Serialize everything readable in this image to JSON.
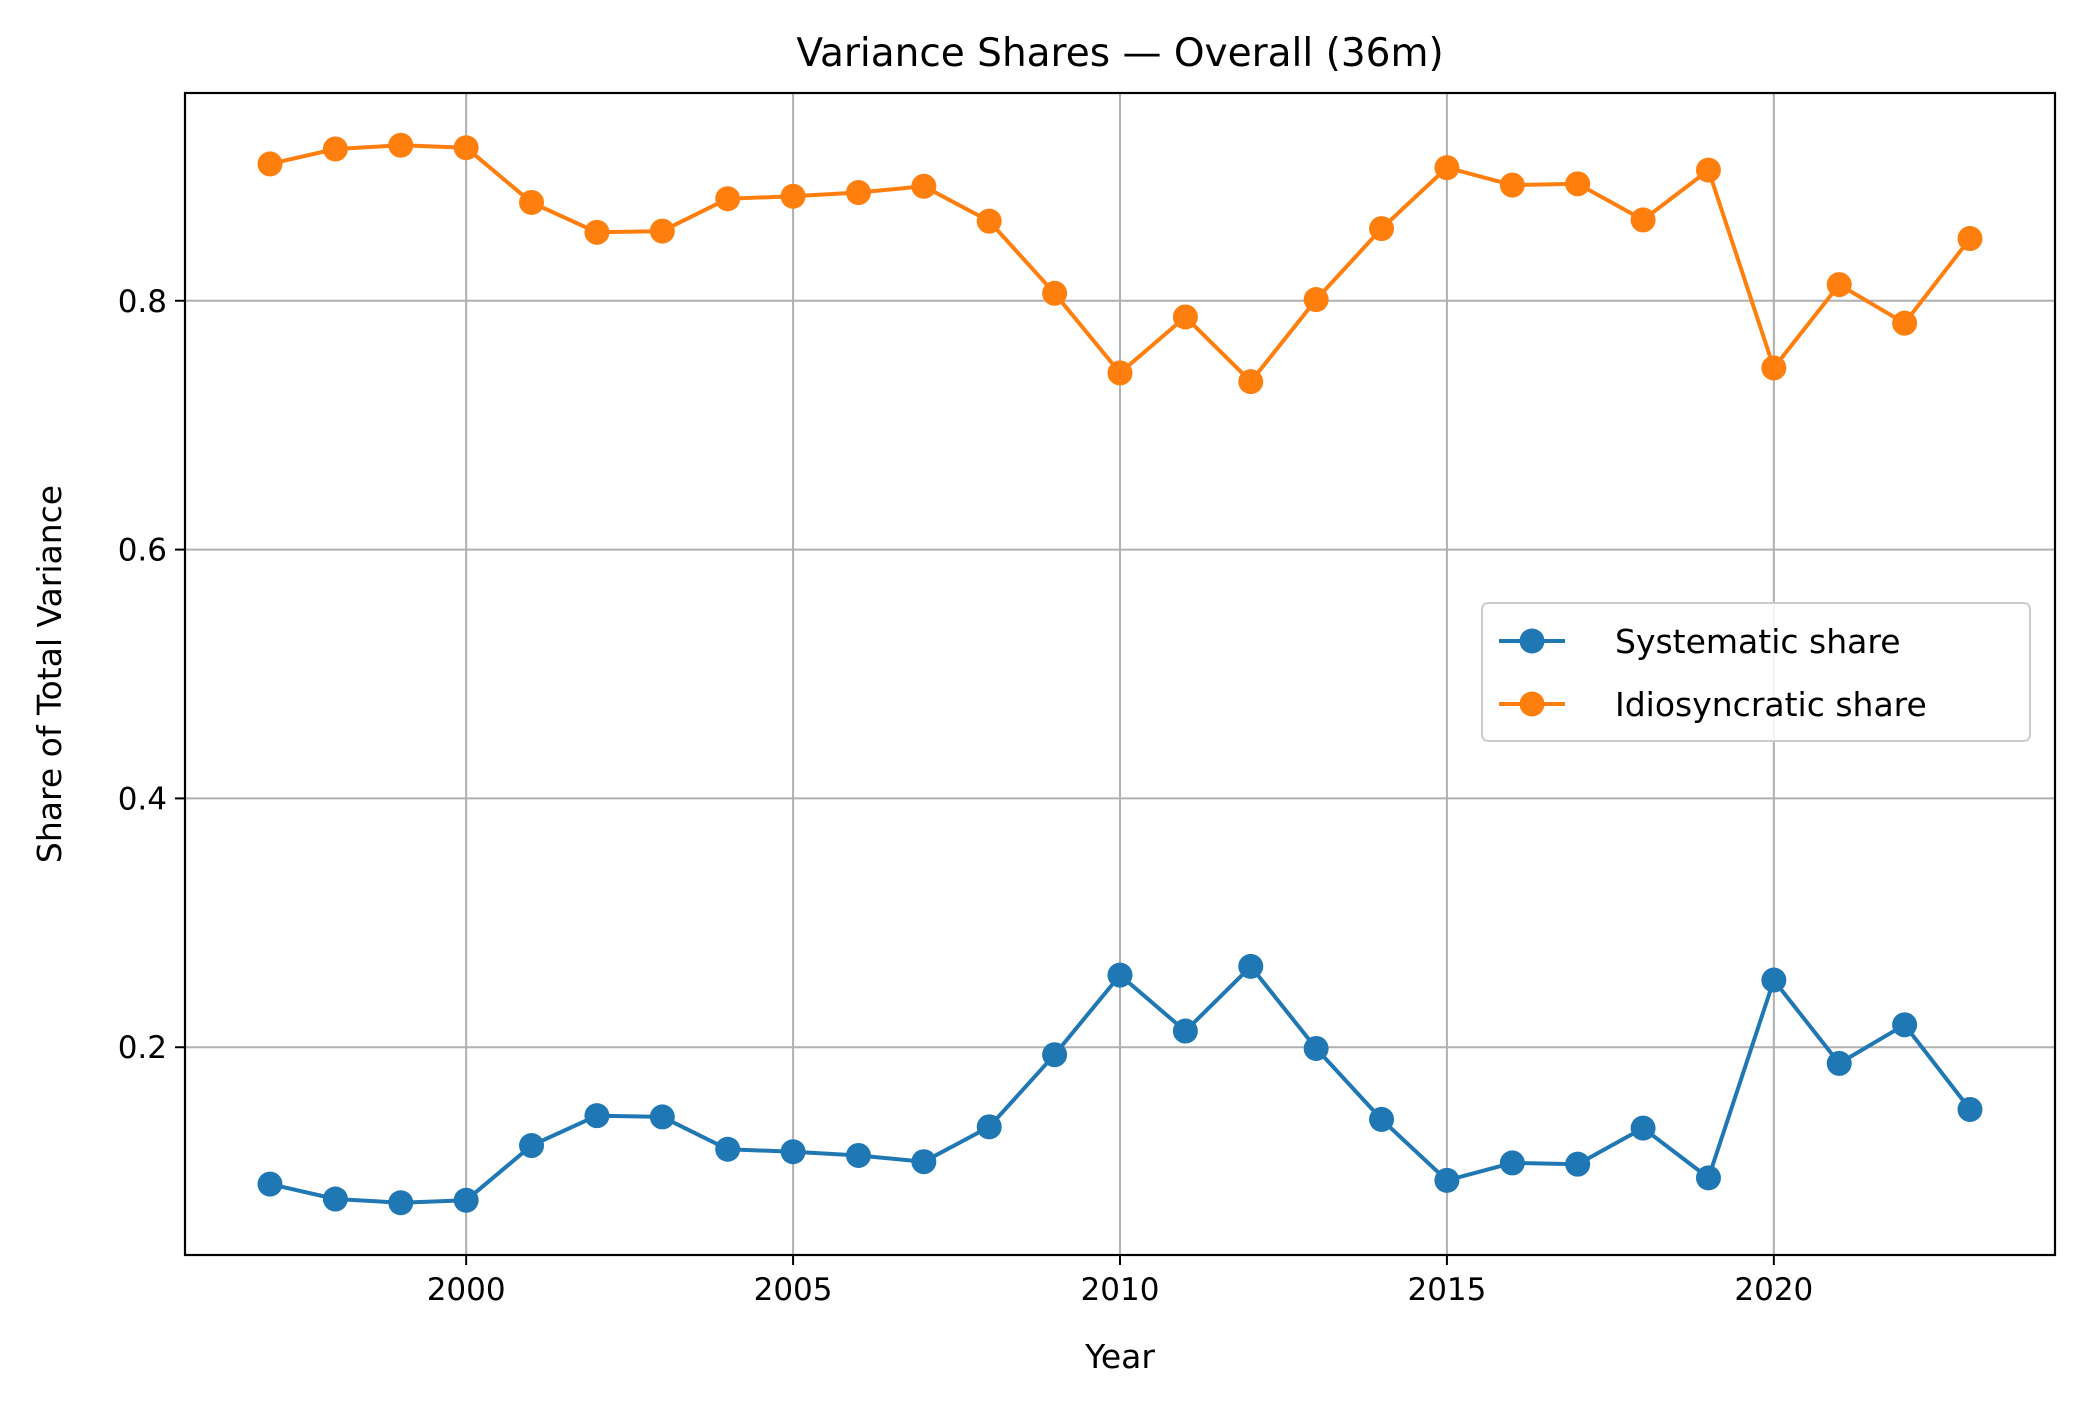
{
  "chart_data": {
    "type": "line",
    "title": "Variance Shares — Overall (36m)",
    "xlabel": "Year",
    "ylabel": "Share of Total Variance",
    "xlim": [
      1995.7,
      2024.3
    ],
    "ylim": [
      0.033,
      0.967
    ],
    "xticks": [
      2000,
      2005,
      2010,
      2015,
      2020
    ],
    "yticks": [
      0.2,
      0.4,
      0.6,
      0.8
    ],
    "grid": true,
    "legend_position": "center-right",
    "x": [
      1997,
      1998,
      1999,
      2000,
      2001,
      2002,
      2003,
      2004,
      2005,
      2006,
      2007,
      2008,
      2009,
      2010,
      2011,
      2012,
      2013,
      2014,
      2015,
      2016,
      2017,
      2018,
      2019,
      2020,
      2021,
      2022,
      2023
    ],
    "series": [
      {
        "name": "Systematic share",
        "color": "#1f77b4",
        "values": [
          0.09,
          0.078,
          0.075,
          0.077,
          0.121,
          0.145,
          0.144,
          0.118,
          0.116,
          0.113,
          0.108,
          0.136,
          0.194,
          0.258,
          0.213,
          0.265,
          0.199,
          0.142,
          0.093,
          0.107,
          0.106,
          0.135,
          0.095,
          0.254,
          0.187,
          0.218,
          0.15
        ]
      },
      {
        "name": "Idiosyncratic share",
        "color": "#ff7f0e",
        "values": [
          0.91,
          0.922,
          0.925,
          0.923,
          0.879,
          0.855,
          0.856,
          0.882,
          0.884,
          0.887,
          0.892,
          0.864,
          0.806,
          0.742,
          0.787,
          0.735,
          0.801,
          0.858,
          0.907,
          0.893,
          0.894,
          0.865,
          0.905,
          0.746,
          0.813,
          0.782,
          0.85
        ]
      }
    ]
  }
}
